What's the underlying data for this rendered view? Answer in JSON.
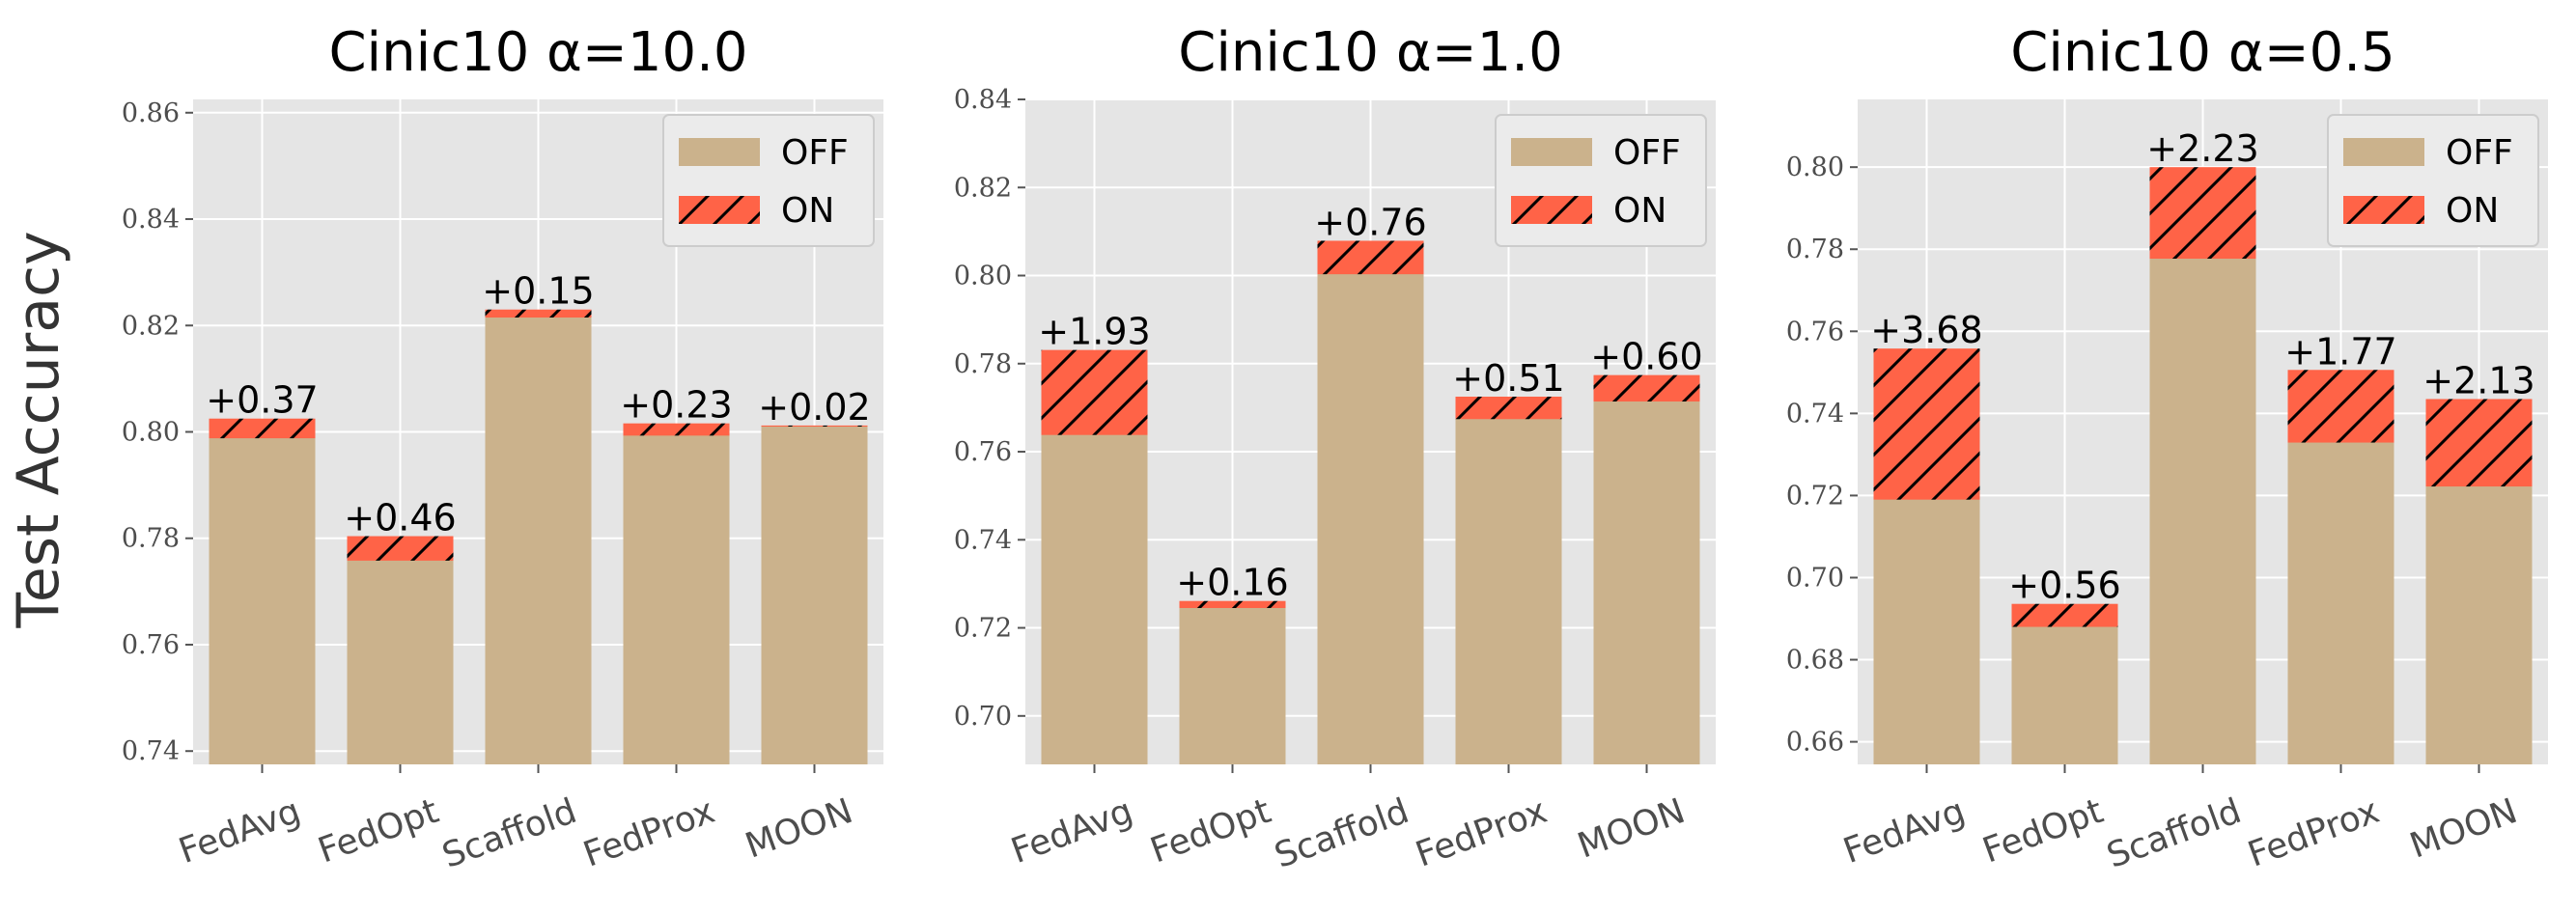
{
  "figure": {
    "ylabel": "Test Accuracy",
    "colors": {
      "off": "#cbb28c",
      "on": "#ff6347",
      "panel_bg": "#e5e5e5",
      "grid": "#ffffff"
    }
  },
  "chart_data": [
    {
      "type": "bar",
      "title": "Cinic10 α=10.0",
      "categories": [
        "FedAvg",
        "FedOpt",
        "Scaffold",
        "FedProx",
        "MOON"
      ],
      "series": [
        {
          "name": "OFF",
          "values": [
            0.7988,
            0.7758,
            0.8215,
            0.7993,
            0.801
          ]
        },
        {
          "name": "ON",
          "values": [
            0.8025,
            0.7804,
            0.823,
            0.8016,
            0.8012
          ]
        }
      ],
      "labels": [
        "+0.37",
        "+0.46",
        "+0.15",
        "+0.23",
        "+0.02"
      ],
      "ylim": [
        0.7375,
        0.8625
      ],
      "yticks": [
        0.74,
        0.76,
        0.78,
        0.8,
        0.82,
        0.84,
        0.86
      ],
      "ytick_labels": [
        "0.74",
        "0.76",
        "0.78",
        "0.80",
        "0.82",
        "0.84",
        "0.86"
      ],
      "legend": "top-right",
      "grid": true
    },
    {
      "type": "bar",
      "title": "Cinic10 α=1.0",
      "categories": [
        "FedAvg",
        "FedOpt",
        "Scaffold",
        "FedProx",
        "MOON"
      ],
      "series": [
        {
          "name": "OFF",
          "values": [
            0.7638,
            0.7245,
            0.8003,
            0.7674,
            0.7714
          ]
        },
        {
          "name": "ON",
          "values": [
            0.7831,
            0.7261,
            0.8079,
            0.7725,
            0.7774
          ]
        }
      ],
      "labels": [
        "+1.93",
        "+0.16",
        "+0.76",
        "+0.51",
        "+0.60"
      ],
      "ylim": [
        0.689,
        0.84
      ],
      "yticks": [
        0.7,
        0.72,
        0.74,
        0.76,
        0.78,
        0.8,
        0.82,
        0.84
      ],
      "ytick_labels": [
        "0.70",
        "0.72",
        "0.74",
        "0.76",
        "0.78",
        "0.80",
        "0.82",
        "0.84"
      ],
      "legend": "top-right",
      "grid": true
    },
    {
      "type": "bar",
      "title": "Cinic10 α=0.5",
      "categories": [
        "FedAvg",
        "FedOpt",
        "Scaffold",
        "FedProx",
        "MOON"
      ],
      "series": [
        {
          "name": "OFF",
          "values": [
            0.719,
            0.688,
            0.7777,
            0.7329,
            0.7222
          ]
        },
        {
          "name": "ON",
          "values": [
            0.7558,
            0.6936,
            0.8,
            0.7506,
            0.7435
          ]
        }
      ],
      "labels": [
        "+3.68",
        "+0.56",
        "+2.23",
        "+1.77",
        "+2.13"
      ],
      "ylim": [
        0.6545,
        0.8165
      ],
      "yticks": [
        0.66,
        0.68,
        0.7,
        0.72,
        0.74,
        0.76,
        0.78,
        0.8
      ],
      "ytick_labels": [
        "0.66",
        "0.68",
        "0.70",
        "0.72",
        "0.74",
        "0.76",
        "0.78",
        "0.80"
      ],
      "legend": "top-right",
      "grid": true
    }
  ]
}
